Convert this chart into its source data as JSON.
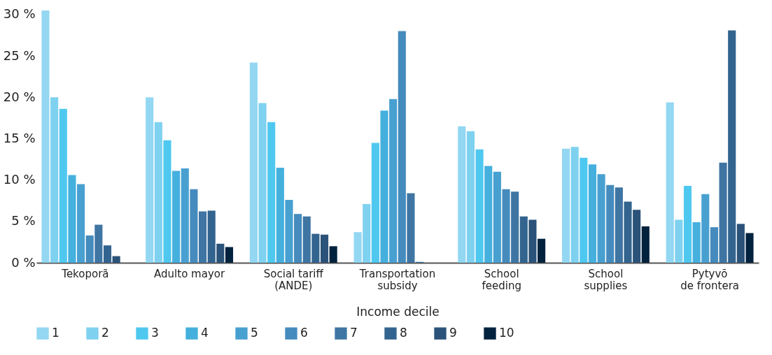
{
  "chart_data": {
    "type": "bar",
    "xlabel": "Income decile",
    "categories": [
      "Tekoporã",
      "Adulto mayor",
      "Social tariff\n(ANDE)",
      "Transportation\nsubsidy",
      "School\nfeeding",
      "School\nsupplies",
      "Pytyvõ\nde frontera"
    ],
    "ylim": [
      0,
      30.5
    ],
    "yticks": [
      {
        "value": 0,
        "label": "0 %"
      },
      {
        "value": 5,
        "label": "5 %"
      },
      {
        "value": 10,
        "label": "10 %"
      },
      {
        "value": 15,
        "label": "15 %"
      },
      {
        "value": 20,
        "label": "20 %"
      },
      {
        "value": 25,
        "label": "25 %"
      },
      {
        "value": 30,
        "label": "30 %"
      }
    ],
    "grid": false,
    "legend": "bottom",
    "series": [
      {
        "name": "1",
        "color": "#93d7f2",
        "values": [
          30.5,
          20.0,
          24.2,
          3.7,
          16.5,
          13.8,
          19.4
        ]
      },
      {
        "name": "2",
        "color": "#7fd1f0",
        "values": [
          20.0,
          17.0,
          19.3,
          7.1,
          15.9,
          14.0,
          5.2
        ]
      },
      {
        "name": "3",
        "color": "#4fc8f0",
        "values": [
          18.6,
          14.8,
          17.0,
          14.5,
          13.7,
          12.7,
          9.3
        ]
      },
      {
        "name": "4",
        "color": "#45b0de",
        "values": [
          10.6,
          11.1,
          11.5,
          18.4,
          11.7,
          11.9,
          4.9
        ]
      },
      {
        "name": "5",
        "color": "#48a0d0",
        "values": [
          9.5,
          11.4,
          7.6,
          19.8,
          11.0,
          10.7,
          8.3
        ]
      },
      {
        "name": "6",
        "color": "#458bbd",
        "values": [
          3.3,
          8.9,
          5.9,
          28.0,
          8.9,
          9.4,
          4.3
        ]
      },
      {
        "name": "7",
        "color": "#3f75a3",
        "values": [
          4.6,
          6.2,
          5.6,
          8.4,
          8.6,
          9.1,
          12.1
        ]
      },
      {
        "name": "8",
        "color": "#33648f",
        "values": [
          2.1,
          6.3,
          3.5,
          0.1,
          5.6,
          7.4,
          28.1
        ]
      },
      {
        "name": "9",
        "color": "#2b5279",
        "values": [
          0.8,
          2.3,
          3.4,
          null,
          5.2,
          6.4,
          4.7
        ]
      },
      {
        "name": "10",
        "color": "#02223e",
        "values": [
          null,
          1.9,
          2.0,
          null,
          2.9,
          4.4,
          3.6
        ]
      }
    ]
  }
}
